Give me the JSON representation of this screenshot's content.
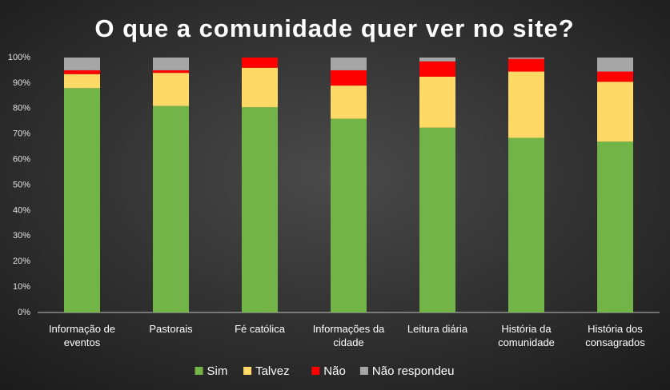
{
  "chart_data": {
    "type": "stacked_bar",
    "title": "O que a comunidade quer ver no site?",
    "categories": [
      "Informação de eventos",
      "Pastorais",
      "Fé católica",
      "Informações da cidade",
      "Leitura diária",
      "História da comunidade",
      "História dos consagrados"
    ],
    "series": [
      {
        "name": "Sim",
        "color": "#72b447",
        "values": [
          88,
          81,
          80.5,
          76,
          72.5,
          68.5,
          67
        ]
      },
      {
        "name": "Talvez",
        "color": "#ffd966",
        "values": [
          5.5,
          13,
          15.5,
          13,
          20,
          26,
          23.5
        ]
      },
      {
        "name": "Não",
        "color": "#ff0000",
        "values": [
          1.5,
          1,
          4,
          6,
          6,
          5,
          4
        ]
      },
      {
        "name": "Não respondeu",
        "color": "#a6a6a6",
        "values": [
          5,
          5,
          0,
          5,
          1.5,
          0.5,
          5.5
        ]
      }
    ],
    "ylim": [
      0,
      100
    ],
    "yticks": [
      {
        "value": 0,
        "label": "0%"
      },
      {
        "value": 10,
        "label": "10%"
      },
      {
        "value": 20,
        "label": "20%"
      },
      {
        "value": 30,
        "label": "30%"
      },
      {
        "value": 40,
        "label": "40%"
      },
      {
        "value": 50,
        "label": "50%"
      },
      {
        "value": 60,
        "label": "60%"
      },
      {
        "value": 70,
        "label": "70%"
      },
      {
        "value": 80,
        "label": "80%"
      },
      {
        "value": 90,
        "label": "90%"
      },
      {
        "value": 100,
        "label": "100%"
      }
    ],
    "legend": "bottom"
  }
}
